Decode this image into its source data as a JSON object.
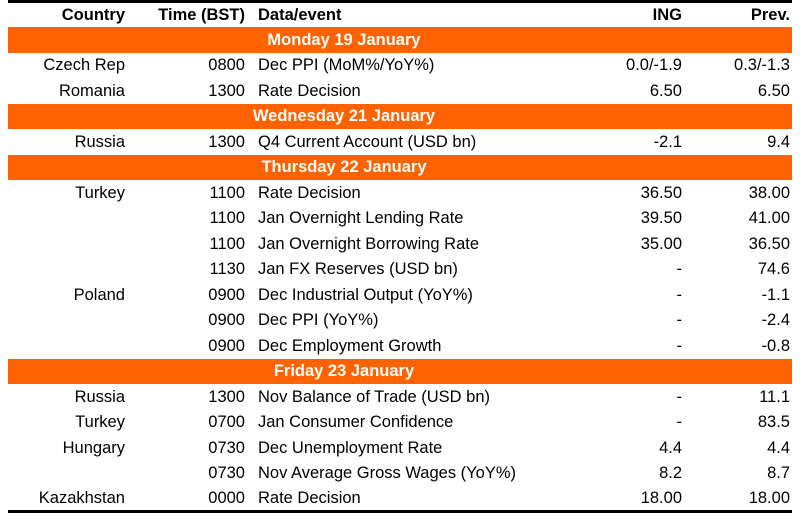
{
  "accent_color": "#FF6200",
  "table": {
    "headers": {
      "country": "Country",
      "time": "Time (BST)",
      "event": "Data/event",
      "ing": "ING",
      "prev": "Prev."
    },
    "sections": [
      {
        "title": "Monday 19 January",
        "rows": [
          [
            "Czech Rep",
            "0800",
            "Dec PPI (MoM%/YoY%)",
            "0.0/-1.9",
            "0.3/-1.3"
          ],
          [
            "Romania",
            "1300",
            "Rate Decision",
            "6.50",
            "6.50"
          ]
        ]
      },
      {
        "title": "Wednesday 21 January",
        "rows": [
          [
            "Russia",
            "1300",
            "Q4 Current Account (USD bn)",
            "-2.1",
            "9.4"
          ]
        ]
      },
      {
        "title": "Thursday 22 January",
        "rows": [
          [
            "Turkey",
            "1100",
            "Rate Decision",
            "36.50",
            "38.00"
          ],
          [
            "",
            "1100",
            "Jan Overnight Lending Rate",
            "39.50",
            "41.00"
          ],
          [
            "",
            "1100",
            "Jan Overnight Borrowing Rate",
            "35.00",
            "36.50"
          ],
          [
            "",
            "1130",
            "Jan FX Reserves (USD bn)",
            "-",
            "74.6"
          ],
          [
            "Poland",
            "0900",
            "Dec Industrial Output (YoY%)",
            "-",
            "-1.1"
          ],
          [
            "",
            "0900",
            "Dec PPI (YoY%)",
            "-",
            "-2.4"
          ],
          [
            "",
            "0900",
            "Dec Employment Growth",
            "-",
            "-0.8"
          ]
        ]
      },
      {
        "title": "Friday 23 January",
        "rows": [
          [
            "Russia",
            "1300",
            "Nov Balance of Trade (USD bn)",
            "-",
            "11.1"
          ],
          [
            "Turkey",
            "0700",
            "Jan Consumer Confidence",
            "-",
            "83.5"
          ],
          [
            "Hungary",
            "0730",
            "Dec Unemployment Rate",
            "4.4",
            "4.4"
          ],
          [
            "",
            "0730",
            "Nov Average Gross Wages (YoY%)",
            "8.2",
            "8.7"
          ],
          [
            "Kazakhstan",
            "0000",
            "Rate Decision",
            "18.00",
            "18.00"
          ]
        ]
      }
    ]
  }
}
